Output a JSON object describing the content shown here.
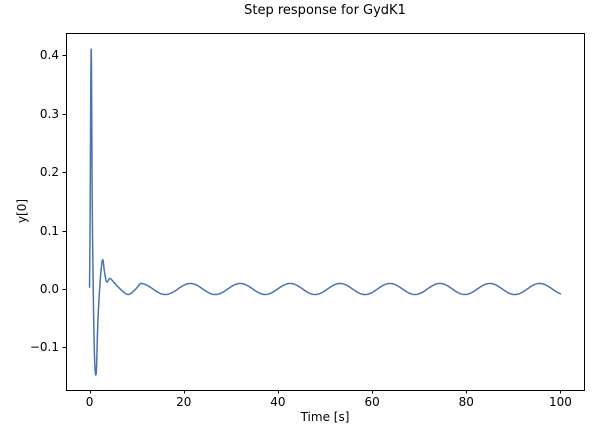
{
  "figure": {
    "background": "#ffffff",
    "spine_color": "#000000",
    "text_color": "#000000"
  },
  "chart_data": {
    "type": "line",
    "title": "Step response for GydK1",
    "xlabel": "Time [s]",
    "ylabel": "y[0]",
    "xlim": [
      -5,
      105
    ],
    "ylim": [
      -0.1727,
      0.4377
    ],
    "xticks": {
      "values": [
        0,
        20,
        40,
        60,
        80,
        100
      ],
      "labels": [
        "0",
        "20",
        "40",
        "60",
        "80",
        "100"
      ]
    },
    "yticks": {
      "values": [
        -0.1,
        0.0,
        0.1,
        0.2,
        0.3,
        0.4
      ],
      "labels": [
        "−0.1",
        "0.0",
        "0.1",
        "0.2",
        "0.3",
        "0.4"
      ]
    },
    "grid": false,
    "legend": false,
    "line": {
      "color": "#4C72B0",
      "width": 1.5
    },
    "series": [
      {
        "transient_keypoints": [
          [
            0.0,
            0.003
          ],
          [
            0.1,
            0.1
          ],
          [
            0.35,
            0.41
          ],
          [
            0.6,
            0.12
          ],
          [
            1.0,
            -0.1
          ],
          [
            1.4,
            -0.145
          ],
          [
            1.75,
            -0.06
          ],
          [
            2.1,
            -0.005
          ],
          [
            2.45,
            0.032
          ],
          [
            2.8,
            0.05
          ],
          [
            3.2,
            0.028
          ],
          [
            3.65,
            0.012
          ],
          [
            4.3,
            0.018
          ],
          [
            5.0,
            0.013
          ],
          [
            6.0,
            0.004
          ],
          [
            7.0,
            -0.0035
          ],
          [
            8.2,
            -0.0095
          ],
          [
            9.5,
            -0.0025
          ],
          [
            10.8,
            0.0095
          ]
        ],
        "steady_state_ripple": {
          "mean": 0.0,
          "amplitude": 0.0095,
          "period_s": 10.6,
          "peak_time_s": 10.8,
          "t_start": 10.8,
          "t_end": 100
        }
      }
    ],
    "key_features": {
      "initial_value": 0.0,
      "peak_value": 0.41,
      "peak_time_s": 0.35,
      "undershoot_value": -0.145,
      "undershoot_time_s": 1.4,
      "second_peak_value": 0.05,
      "second_peak_time_s": 2.8,
      "steady_state_mean": 0.0
    }
  }
}
